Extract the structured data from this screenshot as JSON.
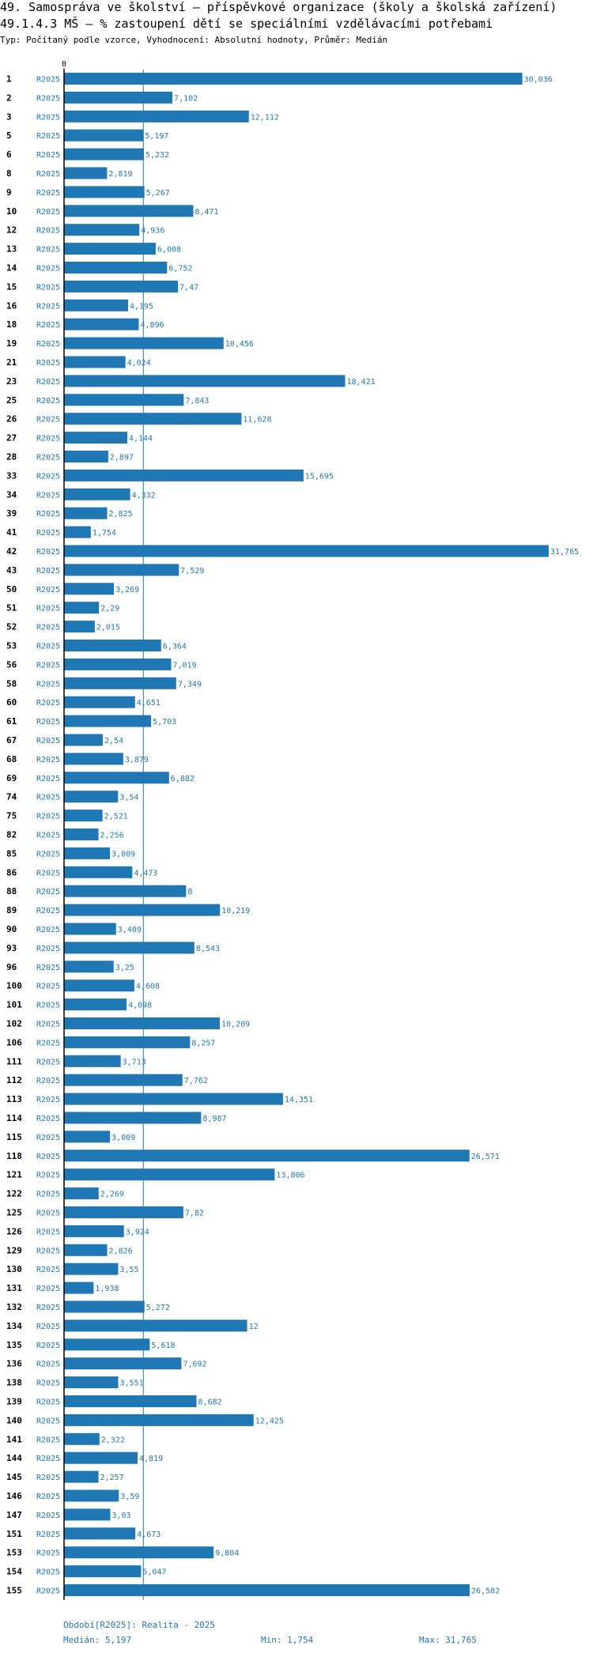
{
  "header": {
    "title": "49. Samospráva ve školství – příspěvkové organizace (školy a školská zařízení)",
    "subtitle": "49.1.4.3 MŠ – % zastoupení dětí se speciálními vzdělávacími potřebami",
    "meta": "Typ: Počítaný podle vzorce, Vyhodnocení: Absolutní hodnoty, Průměr: Medián"
  },
  "chart_data": {
    "type": "bar",
    "orientation": "horizontal",
    "axis_zero_label": "0",
    "xlim": [
      0,
      31.765
    ],
    "median": 5.197,
    "series_name": "R2025",
    "categories": [
      "1",
      "2",
      "3",
      "5",
      "6",
      "8",
      "9",
      "10",
      "12",
      "13",
      "14",
      "15",
      "16",
      "18",
      "19",
      "21",
      "23",
      "25",
      "26",
      "27",
      "28",
      "33",
      "34",
      "39",
      "41",
      "42",
      "43",
      "50",
      "51",
      "52",
      "53",
      "56",
      "58",
      "60",
      "61",
      "67",
      "68",
      "69",
      "74",
      "75",
      "82",
      "85",
      "86",
      "88",
      "89",
      "90",
      "93",
      "96",
      "100",
      "101",
      "102",
      "106",
      "111",
      "112",
      "113",
      "114",
      "115",
      "118",
      "121",
      "122",
      "125",
      "126",
      "129",
      "130",
      "131",
      "132",
      "134",
      "135",
      "136",
      "138",
      "139",
      "140",
      "141",
      "144",
      "145",
      "146",
      "147",
      "151",
      "153",
      "154",
      "155"
    ],
    "values": [
      30.036,
      7.102,
      12.112,
      5.197,
      5.232,
      2.819,
      5.267,
      8.471,
      4.936,
      6.008,
      6.752,
      7.47,
      4.195,
      4.896,
      10.456,
      4.024,
      18.421,
      7.843,
      11.628,
      4.144,
      2.897,
      15.695,
      4.332,
      2.825,
      1.754,
      31.765,
      7.529,
      3.269,
      2.29,
      2.015,
      6.364,
      7.019,
      7.349,
      4.651,
      5.703,
      2.54,
      3.879,
      6.882,
      3.54,
      2.521,
      2.256,
      3.009,
      4.473,
      8,
      10.219,
      3.409,
      8.543,
      3.25,
      4.608,
      4.098,
      10.209,
      8.257,
      3.713,
      7.762,
      14.351,
      8.987,
      3.009,
      26.571,
      13.806,
      2.269,
      7.82,
      3.924,
      2.826,
      3.55,
      1.938,
      5.272,
      12,
      5.618,
      7.692,
      3.551,
      8.682,
      12.425,
      2.322,
      4.819,
      2.257,
      3.59,
      3.03,
      4.673,
      9.804,
      5.047,
      26.582
    ],
    "value_labels": [
      "30,036",
      "7,102",
      "12,112",
      "5,197",
      "5,232",
      "2,819",
      "5,267",
      "8,471",
      "4,936",
      "6,008",
      "6,752",
      "7,47",
      "4,195",
      "4,896",
      "10,456",
      "4,024",
      "18,421",
      "7,843",
      "11,628",
      "4,144",
      "2,897",
      "15,695",
      "4,332",
      "2,825",
      "1,754",
      "31,765",
      "7,529",
      "3,269",
      "2,29",
      "2,015",
      "6,364",
      "7,019",
      "7,349",
      "4,651",
      "5,703",
      "2,54",
      "3,879",
      "6,882",
      "3,54",
      "2,521",
      "2,256",
      "3,009",
      "4,473",
      "8",
      "10,219",
      "3,409",
      "8,543",
      "3,25",
      "4,608",
      "4,098",
      "10,209",
      "8,257",
      "3,713",
      "7,762",
      "14,351",
      "8,987",
      "3,009",
      "26,571",
      "13,806",
      "2,269",
      "7,82",
      "3,924",
      "2,826",
      "3,55",
      "1,938",
      "5,272",
      "12",
      "5,618",
      "7,692",
      "3,551",
      "8,682",
      "12,425",
      "2,322",
      "4,819",
      "2,257",
      "3,59",
      "3,03",
      "4,673",
      "9,804",
      "5,047",
      "26,582"
    ]
  },
  "footer": {
    "period": "Období[R2025]: Realita - 2025",
    "median_label": "Medián: 5,197",
    "min_label": "Min: 1,754",
    "max_label": "Max: 31,765"
  },
  "colors": {
    "bar": "#1f77b4",
    "label": "#1f77b4",
    "axis": "#000000",
    "median_line": "#1f77b4"
  }
}
